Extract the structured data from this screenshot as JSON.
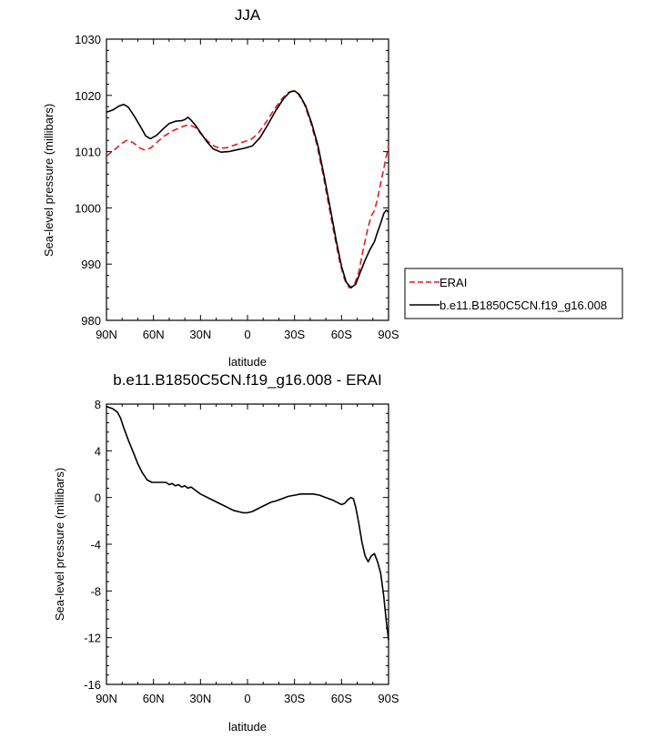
{
  "chart_data": [
    {
      "type": "line",
      "title": "JJA",
      "xlabel": "latitude",
      "ylabel": "Sea-level pressure (millibars)",
      "xlim": [
        90,
        -90
      ],
      "ylim": [
        980,
        1030
      ],
      "x_ticks": [
        90,
        60,
        30,
        0,
        -30,
        -60,
        -90
      ],
      "x_tick_labels": [
        "90N",
        "60N",
        "30N",
        "0",
        "30S",
        "60S",
        "90S"
      ],
      "y_ticks": [
        980,
        990,
        1000,
        1010,
        1020,
        1030
      ],
      "y_tick_labels": [
        "980",
        "990",
        "1000",
        "1010",
        "1020",
        "1030"
      ],
      "legend": {
        "position": "right",
        "entries": [
          "ERAI",
          "b.e11.B1850C5CN.f19_g16.008"
        ]
      },
      "series": [
        {
          "name": "ERAI",
          "color": "#e41a1c",
          "style": "dashed",
          "points": [
            [
              90,
              1009.2
            ],
            [
              85,
              1010.3
            ],
            [
              80,
              1011.5
            ],
            [
              77,
              1012.0
            ],
            [
              73,
              1011.6
            ],
            [
              69,
              1010.7
            ],
            [
              66,
              1010.3
            ],
            [
              62,
              1010.6
            ],
            [
              58,
              1011.6
            ],
            [
              53,
              1012.8
            ],
            [
              47,
              1013.8
            ],
            [
              41,
              1014.5
            ],
            [
              37,
              1014.8
            ],
            [
              33,
              1014.2
            ],
            [
              28,
              1012.6
            ],
            [
              23,
              1011.2
            ],
            [
              18,
              1010.6
            ],
            [
              13,
              1010.7
            ],
            [
              8,
              1011.2
            ],
            [
              3,
              1011.7
            ],
            [
              -2,
              1012.1
            ],
            [
              -7,
              1013.3
            ],
            [
              -12,
              1015.3
            ],
            [
              -17,
              1017.5
            ],
            [
              -22,
              1019.4
            ],
            [
              -26,
              1020.5
            ],
            [
              -29,
              1020.8
            ],
            [
              -32,
              1020.4
            ],
            [
              -36,
              1018.6
            ],
            [
              -40,
              1015.5
            ],
            [
              -44,
              1011.5
            ],
            [
              -48,
              1006.2
            ],
            [
              -52,
              1000.2
            ],
            [
              -56,
              994.4
            ],
            [
              -59,
              990.2
            ],
            [
              -62,
              987.2
            ],
            [
              -65,
              985.8
            ],
            [
              -68,
              986.2
            ],
            [
              -71,
              988.6
            ],
            [
              -74,
              992.8
            ],
            [
              -77,
              996.6
            ],
            [
              -79,
              998.6
            ],
            [
              -81,
              999.5
            ],
            [
              -83,
              1001.6
            ],
            [
              -85,
              1004.4
            ],
            [
              -87,
              1007.0
            ],
            [
              -90,
              1011.2
            ]
          ]
        },
        {
          "name": "b.e11.B1850C5CN.f19_g16.008",
          "color": "#000000",
          "style": "solid",
          "points": [
            [
              90,
              1017.0
            ],
            [
              86,
              1017.4
            ],
            [
              82,
              1018.1
            ],
            [
              79,
              1018.4
            ],
            [
              76,
              1017.9
            ],
            [
              72,
              1016.2
            ],
            [
              68,
              1014.3
            ],
            [
              65,
              1012.8
            ],
            [
              62,
              1012.3
            ],
            [
              58,
              1012.9
            ],
            [
              54,
              1014.0
            ],
            [
              50,
              1015.0
            ],
            [
              46,
              1015.4
            ],
            [
              42,
              1015.5
            ],
            [
              40,
              1015.7
            ],
            [
              38,
              1016.1
            ],
            [
              36,
              1015.6
            ],
            [
              33,
              1014.6
            ],
            [
              30,
              1013.4
            ],
            [
              26,
              1011.8
            ],
            [
              22,
              1010.5
            ],
            [
              17,
              1009.9
            ],
            [
              12,
              1010.0
            ],
            [
              7,
              1010.3
            ],
            [
              2,
              1010.6
            ],
            [
              -3,
              1011.0
            ],
            [
              -8,
              1012.5
            ],
            [
              -13,
              1014.8
            ],
            [
              -18,
              1017.3
            ],
            [
              -23,
              1019.4
            ],
            [
              -27,
              1020.6
            ],
            [
              -30,
              1020.8
            ],
            [
              -33,
              1020.2
            ],
            [
              -37,
              1018.2
            ],
            [
              -41,
              1015.0
            ],
            [
              -45,
              1011.0
            ],
            [
              -49,
              1005.5
            ],
            [
              -53,
              999.6
            ],
            [
              -57,
              993.6
            ],
            [
              -60,
              989.6
            ],
            [
              -63,
              986.8
            ],
            [
              -66,
              985.8
            ],
            [
              -69,
              986.4
            ],
            [
              -72,
              988.6
            ],
            [
              -75,
              990.7
            ],
            [
              -78,
              992.5
            ],
            [
              -81,
              994.0
            ],
            [
              -83,
              995.7
            ],
            [
              -85,
              997.3
            ],
            [
              -87,
              999.0
            ],
            [
              -88.5,
              999.6
            ],
            [
              -90,
              999.2
            ]
          ]
        }
      ]
    },
    {
      "type": "line",
      "title": "b.e11.B1850C5CN.f19_g16.008 - ERAI",
      "xlabel": "latitude",
      "ylabel": "Sea-level pressure (millibars)",
      "xlim": [
        90,
        -90
      ],
      "ylim": [
        -16,
        8
      ],
      "x_ticks": [
        90,
        60,
        30,
        0,
        -30,
        -60,
        -90
      ],
      "x_tick_labels": [
        "90N",
        "60N",
        "30N",
        "0",
        "30S",
        "60S",
        "90S"
      ],
      "y_ticks": [
        -16,
        -12,
        -8,
        -4,
        0,
        4,
        8
      ],
      "y_tick_labels": [
        "-16",
        "-12",
        "-8",
        "-4",
        "0",
        "4",
        "8"
      ],
      "series": [
        {
          "name": "b.e11.B1850C5CN.f19_g16.008 - ERAI",
          "color": "#000000",
          "style": "solid",
          "points": [
            [
              90,
              7.8
            ],
            [
              86,
              7.6
            ],
            [
              83,
              7.3
            ],
            [
              81,
              6.8
            ],
            [
              79,
              6.0
            ],
            [
              76,
              4.9
            ],
            [
              73,
              3.9
            ],
            [
              70,
              2.9
            ],
            [
              67,
              2.1
            ],
            [
              64,
              1.5
            ],
            [
              61,
              1.3
            ],
            [
              58,
              1.3
            ],
            [
              55,
              1.3
            ],
            [
              52,
              1.3
            ],
            [
              50,
              1.1
            ],
            [
              48,
              1.2
            ],
            [
              46,
              1.0
            ],
            [
              44,
              1.1
            ],
            [
              42,
              0.9
            ],
            [
              40,
              1.0
            ],
            [
              38,
              0.8
            ],
            [
              36,
              0.9
            ],
            [
              33,
              0.6
            ],
            [
              30,
              0.3
            ],
            [
              27,
              0.1
            ],
            [
              24,
              -0.1
            ],
            [
              21,
              -0.3
            ],
            [
              18,
              -0.5
            ],
            [
              15,
              -0.7
            ],
            [
              12,
              -0.9
            ],
            [
              9,
              -1.1
            ],
            [
              6,
              -1.2
            ],
            [
              3,
              -1.3
            ],
            [
              0,
              -1.3
            ],
            [
              -3,
              -1.2
            ],
            [
              -6,
              -1.0
            ],
            [
              -9,
              -0.8
            ],
            [
              -12,
              -0.6
            ],
            [
              -15,
              -0.4
            ],
            [
              -18,
              -0.3
            ],
            [
              -22,
              -0.1
            ],
            [
              -26,
              0.1
            ],
            [
              -30,
              0.2
            ],
            [
              -34,
              0.3
            ],
            [
              -38,
              0.3
            ],
            [
              -42,
              0.3
            ],
            [
              -46,
              0.2
            ],
            [
              -50,
              0.0
            ],
            [
              -54,
              -0.2
            ],
            [
              -57,
              -0.4
            ],
            [
              -60,
              -0.6
            ],
            [
              -62,
              -0.5
            ],
            [
              -64,
              -0.2
            ],
            [
              -66,
              0.0
            ],
            [
              -67.5,
              -0.1
            ],
            [
              -69,
              -0.8
            ],
            [
              -71,
              -2.2
            ],
            [
              -73,
              -3.8
            ],
            [
              -75,
              -5.0
            ],
            [
              -77,
              -5.5
            ],
            [
              -79,
              -5.0
            ],
            [
              -81,
              -4.8
            ],
            [
              -83,
              -5.5
            ],
            [
              -85,
              -6.5
            ],
            [
              -87,
              -8.5
            ],
            [
              -88.5,
              -10.5
            ],
            [
              -90,
              -12.2
            ]
          ]
        }
      ]
    }
  ]
}
